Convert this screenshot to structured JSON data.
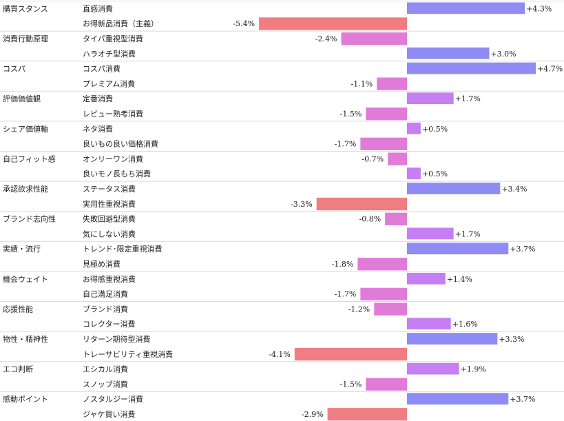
{
  "chart_data": {
    "type": "bar",
    "orientation": "horizontal",
    "value_format": "percent_signed",
    "zero_at_category_boundary": true,
    "groups": [
      {
        "name": "購買スタンス",
        "items": [
          {
            "label": "直感消費",
            "value": 4.3
          },
          {
            "label": "お得新品消費（主義）",
            "value": -5.4
          }
        ]
      },
      {
        "name": "消費行動原理",
        "items": [
          {
            "label": "タイパ重視型消費",
            "value": -2.4
          },
          {
            "label": "ハラオチ型消費",
            "value": 3.0
          }
        ]
      },
      {
        "name": "コスパ",
        "items": [
          {
            "label": "コスパ消費",
            "value": 4.7
          },
          {
            "label": "プレミアム消費",
            "value": -1.1
          }
        ]
      },
      {
        "name": "評価価値観",
        "items": [
          {
            "label": "定番消費",
            "value": 1.7
          },
          {
            "label": "レビュー熟考消費",
            "value": -1.5
          }
        ]
      },
      {
        "name": "シェア価値軸",
        "items": [
          {
            "label": "ネタ消費",
            "value": 0.5
          },
          {
            "label": "良いもの良い価格消費",
            "value": -1.7
          }
        ]
      },
      {
        "name": "自己フィット感",
        "items": [
          {
            "label": "オンリーワン消費",
            "value": -0.7
          },
          {
            "label": "良いモノ長もち消費",
            "value": 0.5
          }
        ]
      },
      {
        "name": "承認欲求性能",
        "items": [
          {
            "label": "ステータス消費",
            "value": 3.4
          },
          {
            "label": "実用性重視消費",
            "value": -3.3
          }
        ]
      },
      {
        "name": "ブランド志向性",
        "items": [
          {
            "label": "失敗回避型消費",
            "value": -0.8
          },
          {
            "label": "気にしない消費",
            "value": 1.7
          }
        ]
      },
      {
        "name": "実績・流行",
        "items": [
          {
            "label": "トレンド･限定重視消費",
            "value": 3.7
          },
          {
            "label": "見極め消費",
            "value": -1.8
          }
        ]
      },
      {
        "name": "機会ウェイト",
        "items": [
          {
            "label": "お得感重視消費",
            "value": 1.4
          },
          {
            "label": "自己満足消費",
            "value": -1.7
          }
        ]
      },
      {
        "name": "応援性能",
        "items": [
          {
            "label": "ブランド消費",
            "value": -1.2
          },
          {
            "label": "コレクター消費",
            "value": 1.6
          }
        ]
      },
      {
        "name": "物性・精神性",
        "items": [
          {
            "label": "リターン期待型消費",
            "value": 3.3
          },
          {
            "label": "トレーサビリティ重視消費",
            "value": -4.1
          }
        ]
      },
      {
        "name": "エコ判断",
        "items": [
          {
            "label": "エシカル消費",
            "value": 1.9
          },
          {
            "label": "スノッブ消費",
            "value": -1.5
          }
        ]
      },
      {
        "name": "感動ポイント",
        "items": [
          {
            "label": "ノスタルジー消費",
            "value": 3.7
          },
          {
            "label": "ジャケ買い消費",
            "value": -2.9
          }
        ]
      }
    ],
    "colors": {
      "positive_strong": "#8f8cf5",
      "positive_weak": "#c57ff3",
      "negative_strong": "#ef7d82",
      "negative_weak": "#e17bd8",
      "divider": "#d9d9d9"
    },
    "grid": false,
    "legend": "none"
  }
}
